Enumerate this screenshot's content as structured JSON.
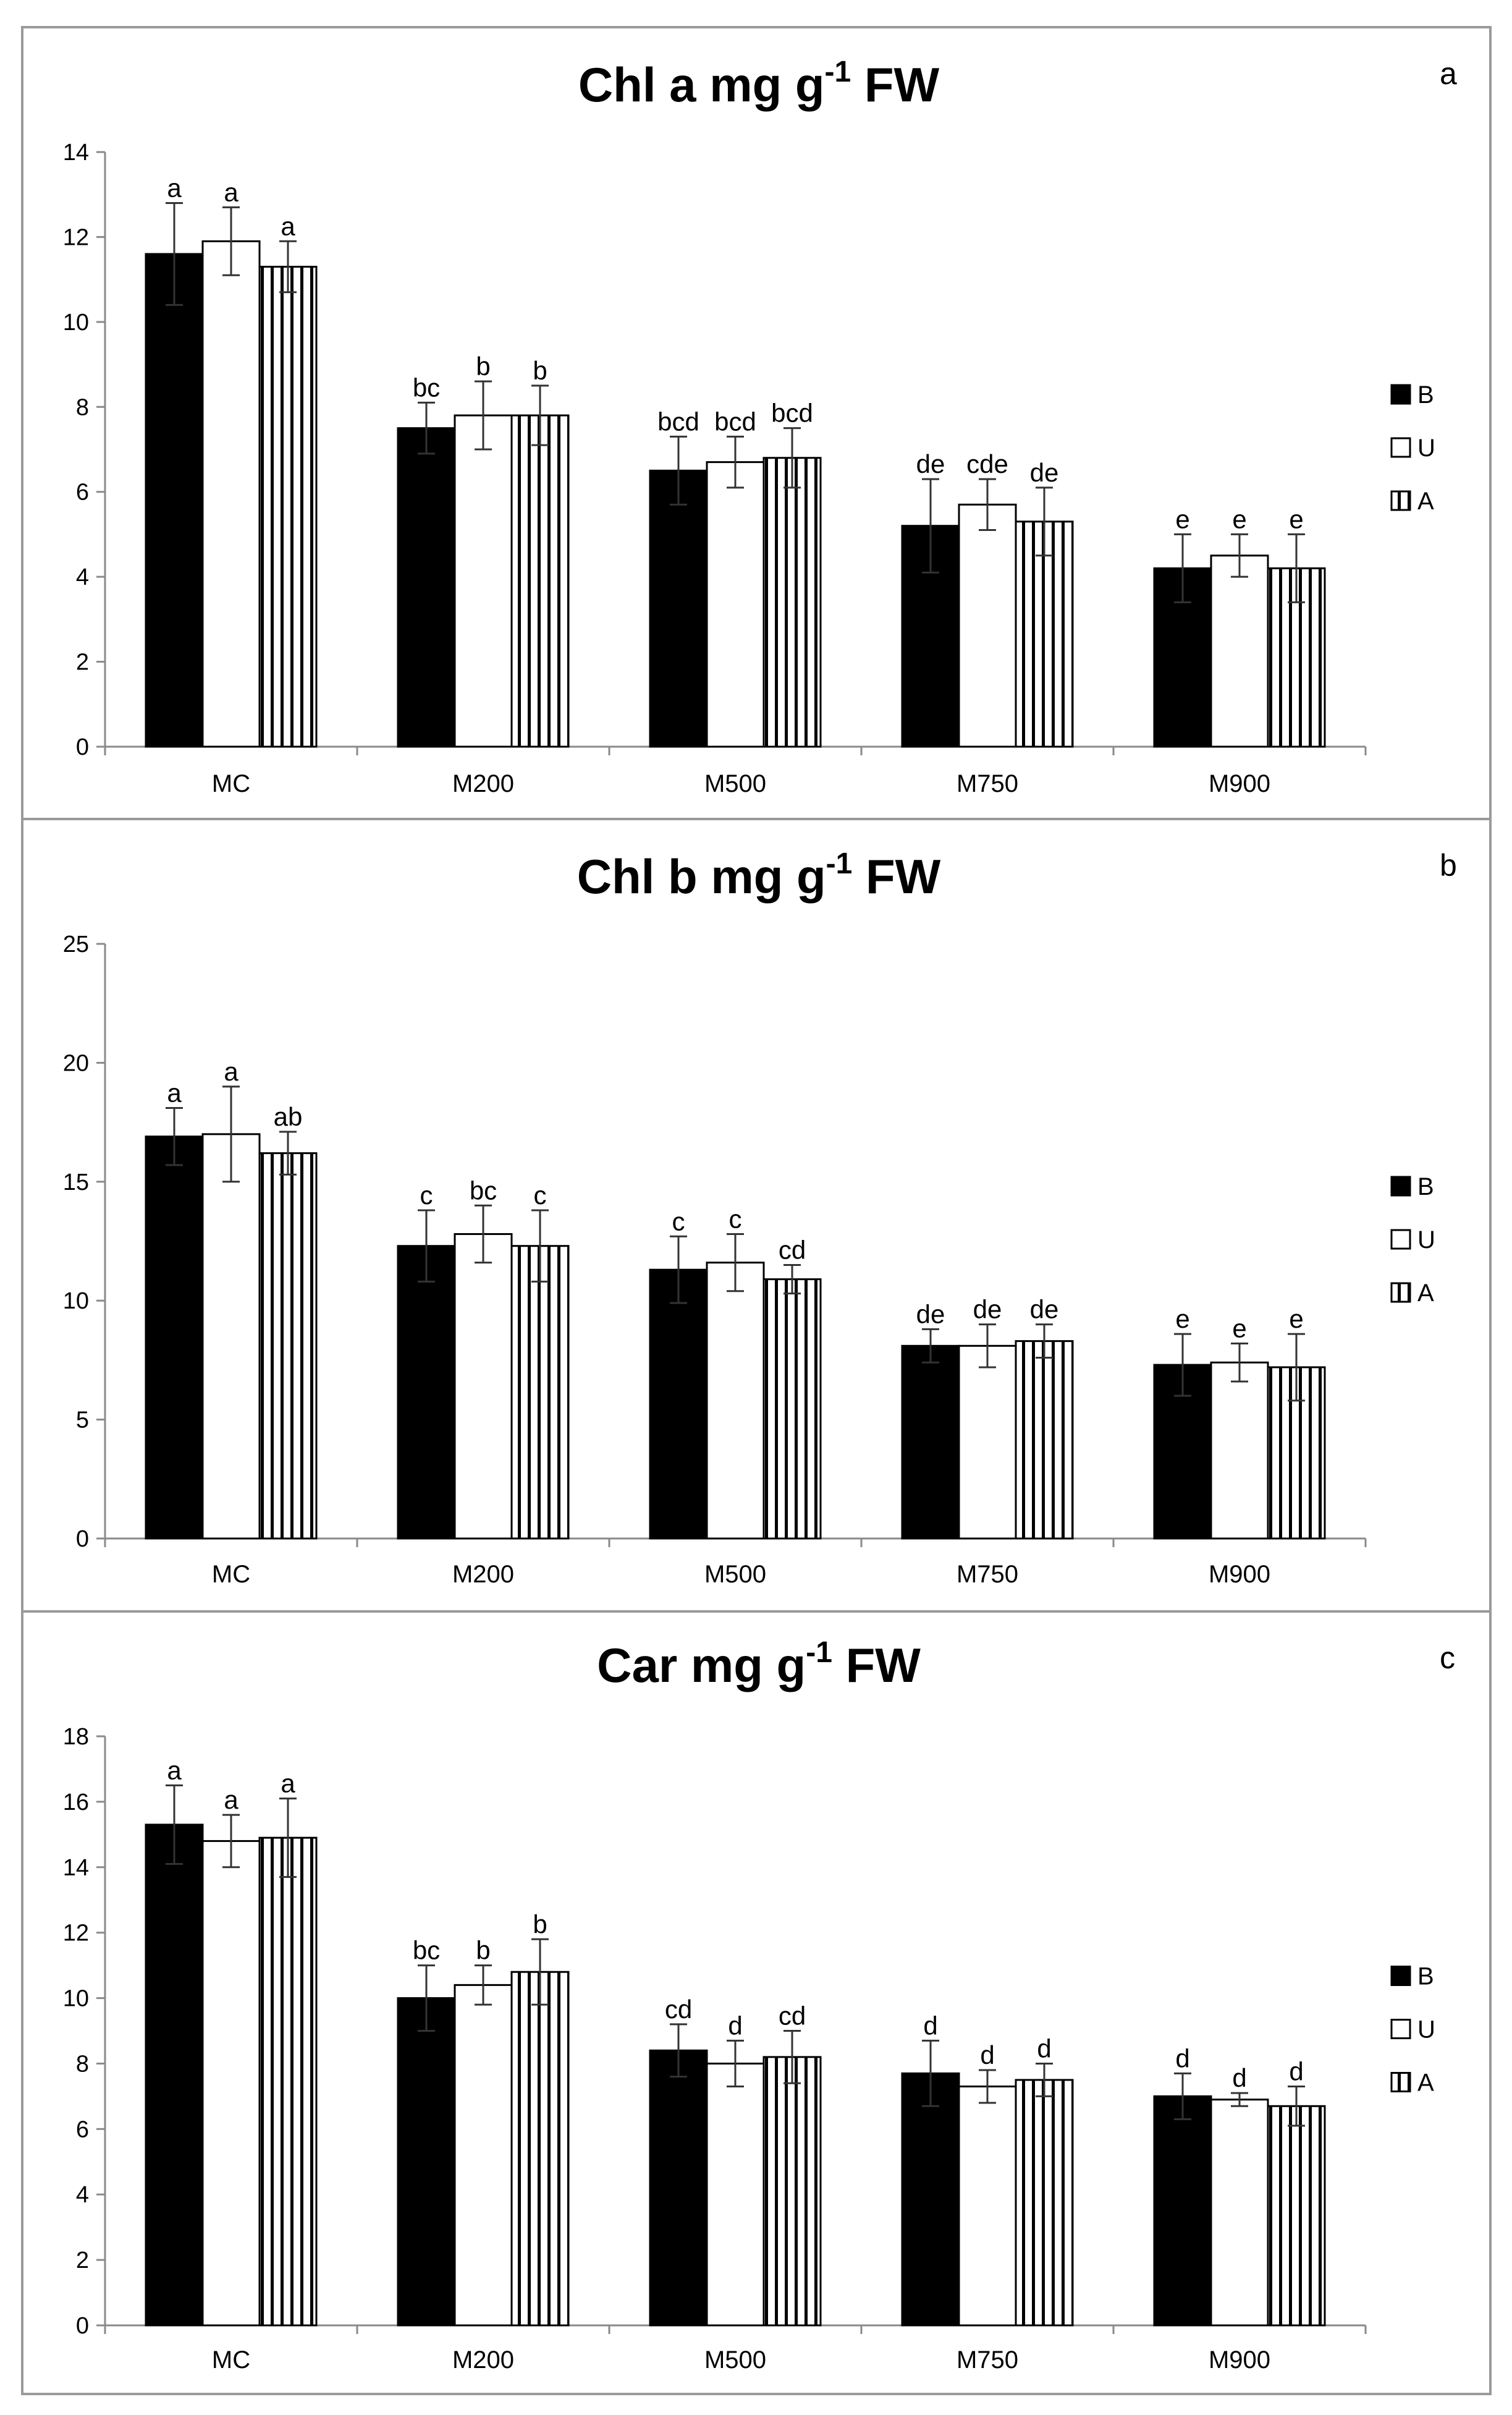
{
  "chart_data": [
    {
      "type": "bar",
      "panel_label": "a",
      "title": "Chl a mg g",
      "title_sup": "-1",
      "title_suffix": " FW",
      "categories": [
        "MC",
        "M200",
        "M500",
        "M750",
        "M900"
      ],
      "ylim": [
        0,
        14
      ],
      "yticks": [
        0,
        2,
        4,
        6,
        8,
        10,
        12,
        14
      ],
      "series": [
        {
          "name": "B",
          "values": [
            11.6,
            7.5,
            6.5,
            5.2,
            4.2
          ],
          "errors": [
            1.2,
            0.6,
            0.8,
            1.1,
            0.8
          ],
          "letters": [
            "a",
            "bc",
            "bcd",
            "de",
            "e"
          ]
        },
        {
          "name": "U",
          "values": [
            11.9,
            7.8,
            6.7,
            5.7,
            4.5
          ],
          "errors": [
            0.8,
            0.8,
            0.6,
            0.6,
            0.5
          ],
          "letters": [
            "a",
            "b",
            "bcd",
            "cde",
            "e"
          ]
        },
        {
          "name": "A",
          "values": [
            11.3,
            7.8,
            6.8,
            5.3,
            4.2
          ],
          "errors": [
            0.6,
            0.7,
            0.7,
            0.8,
            0.8
          ],
          "letters": [
            "a",
            "b",
            "bcd",
            "de",
            "e"
          ]
        }
      ],
      "legend": [
        "B",
        "U",
        "A"
      ]
    },
    {
      "type": "bar",
      "panel_label": "b",
      "title": "Chl b mg g",
      "title_sup": "-1",
      "title_suffix": " FW",
      "categories": [
        "MC",
        "M200",
        "M500",
        "M750",
        "M900"
      ],
      "ylim": [
        0,
        25
      ],
      "yticks": [
        0,
        5,
        10,
        15,
        20,
        25
      ],
      "series": [
        {
          "name": "B",
          "values": [
            16.9,
            12.3,
            11.3,
            8.1,
            7.3
          ],
          "errors": [
            1.2,
            1.5,
            1.4,
            0.7,
            1.3
          ],
          "letters": [
            "a",
            "c",
            "c",
            "de",
            "e"
          ]
        },
        {
          "name": "U",
          "values": [
            17.0,
            12.8,
            11.6,
            8.1,
            7.4
          ],
          "errors": [
            2.0,
            1.2,
            1.2,
            0.9,
            0.8
          ],
          "letters": [
            "a",
            "bc",
            "c",
            "de",
            "e"
          ]
        },
        {
          "name": "A",
          "values": [
            16.2,
            12.3,
            10.9,
            8.3,
            7.2
          ],
          "errors": [
            0.9,
            1.5,
            0.6,
            0.7,
            1.4
          ],
          "letters": [
            "ab",
            "c",
            "cd",
            "de",
            "e"
          ]
        }
      ],
      "legend": [
        "B",
        "U",
        "A"
      ]
    },
    {
      "type": "bar",
      "panel_label": "c",
      "title": "Car mg g",
      "title_sup": "-1",
      "title_suffix": " FW",
      "categories": [
        "MC",
        "M200",
        "M500",
        "M750",
        "M900"
      ],
      "ylim": [
        0,
        18
      ],
      "yticks": [
        0,
        2,
        4,
        6,
        8,
        10,
        12,
        14,
        16,
        18
      ],
      "series": [
        {
          "name": "B",
          "values": [
            15.3,
            10.0,
            8.4,
            7.7,
            7.0
          ],
          "errors": [
            1.2,
            1.0,
            0.8,
            1.0,
            0.7
          ],
          "letters": [
            "a",
            "bc",
            "cd",
            "d",
            "d"
          ]
        },
        {
          "name": "U",
          "values": [
            14.8,
            10.4,
            8.0,
            7.3,
            6.9
          ],
          "errors": [
            0.8,
            0.6,
            0.7,
            0.5,
            0.2
          ],
          "letters": [
            "a",
            "b",
            "d",
            "d",
            "d"
          ]
        },
        {
          "name": "A",
          "values": [
            14.9,
            10.8,
            8.2,
            7.5,
            6.7
          ],
          "errors": [
            1.2,
            1.0,
            0.8,
            0.5,
            0.6
          ],
          "letters": [
            "a",
            "b",
            "cd",
            "d",
            "d"
          ]
        }
      ],
      "legend": [
        "B",
        "U",
        "A"
      ]
    }
  ]
}
